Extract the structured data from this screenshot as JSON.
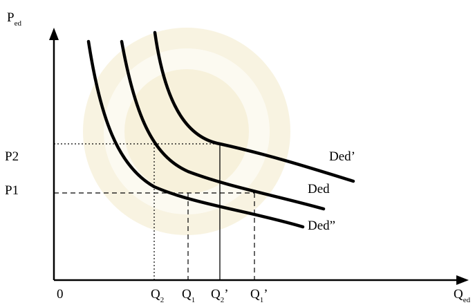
{
  "axes": {
    "y_label": "P",
    "y_label_sub": "ed",
    "x_label": "Q",
    "x_label_sub": "ed",
    "origin": "0"
  },
  "price_levels": [
    {
      "label": "P2"
    },
    {
      "label": "P1"
    }
  ],
  "quantity_ticks": [
    {
      "main": "Q",
      "sub": "2",
      "prime": ""
    },
    {
      "main": "Q",
      "sub": "1",
      "prime": ""
    },
    {
      "main": "Q",
      "sub": "2",
      "prime": "’"
    },
    {
      "main": "Q",
      "sub": "1",
      "prime": "’"
    }
  ],
  "curves": [
    {
      "label": "Ded’"
    },
    {
      "label": "Ded"
    },
    {
      "label": "Ded”"
    }
  ]
}
